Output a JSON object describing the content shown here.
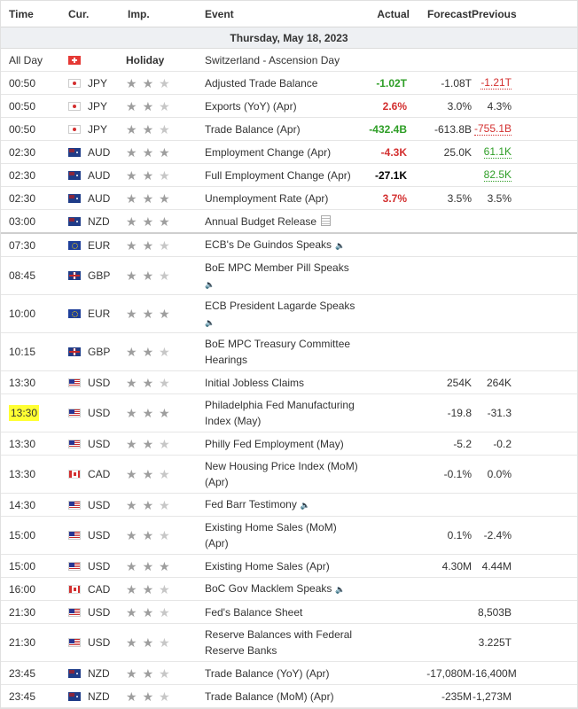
{
  "header": {
    "time": "Time",
    "currency": "Cur.",
    "importance": "Imp.",
    "event": "Event",
    "actual": "Actual",
    "forecast": "Forecast",
    "previous": "Previous"
  },
  "date_label": "Thursday, May 18, 2023",
  "rows": [
    {
      "time": "All Day",
      "flag": "CH",
      "currency": "",
      "holiday": "Holiday",
      "stars": 0,
      "event": "Switzerland - Ascension Day",
      "actual": "",
      "actual_style": "",
      "forecast": "",
      "previous": "",
      "previous_style": "",
      "h": 26
    },
    {
      "time": "00:50",
      "flag": "JP",
      "currency": "JPY",
      "stars": 2,
      "event": "Adjusted Trade Balance",
      "actual": "-1.02T",
      "actual_style": "pos",
      "forecast": "-1.08T",
      "previous": "-1.21T",
      "previous_style": "rev-neg",
      "h": 26
    },
    {
      "time": "00:50",
      "flag": "JP",
      "currency": "JPY",
      "stars": 2,
      "event": "Exports (YoY) (Apr)",
      "actual": "2.6%",
      "actual_style": "neg",
      "forecast": "3.0%",
      "previous": "4.3%",
      "previous_style": "",
      "h": 26
    },
    {
      "time": "00:50",
      "flag": "JP",
      "currency": "JPY",
      "stars": 2,
      "event": "Trade Balance (Apr)",
      "actual": "-432.4B",
      "actual_style": "pos",
      "forecast": "-613.8B",
      "previous": "-755.1B",
      "previous_style": "rev-neg",
      "h": 26
    },
    {
      "time": "02:30",
      "flag": "AU",
      "currency": "AUD",
      "stars": 3,
      "event": "Employment Change (Apr)",
      "actual": "-4.3K",
      "actual_style": "neg",
      "forecast": "25.0K",
      "previous": "61.1K",
      "previous_style": "rev-pos",
      "h": 26
    },
    {
      "time": "02:30",
      "flag": "AU",
      "currency": "AUD",
      "stars": 2,
      "event": "Full Employment Change (Apr)",
      "actual": "-27.1K",
      "actual_style": "bold",
      "forecast": "",
      "previous": "82.5K",
      "previous_style": "rev-pos",
      "h": 26
    },
    {
      "time": "02:30",
      "flag": "AU",
      "currency": "AUD",
      "stars": 3,
      "event": "Unemployment Rate (Apr)",
      "actual": "3.7%",
      "actual_style": "neg",
      "forecast": "3.5%",
      "previous": "3.5%",
      "previous_style": "",
      "h": 26
    },
    {
      "time": "03:00",
      "flag": "NZ",
      "currency": "NZD",
      "stars": 3,
      "event": "Annual Budget Release",
      "doc": true,
      "actual": "",
      "actual_style": "",
      "forecast": "",
      "previous": "",
      "previous_style": "",
      "h": 26,
      "divider": true
    },
    {
      "time": "07:30",
      "flag": "EU",
      "currency": "EUR",
      "stars": 2,
      "event": "ECB's De Guindos Speaks",
      "speaker": true,
      "actual": "",
      "actual_style": "",
      "forecast": "",
      "previous": "",
      "previous_style": "",
      "h": 26
    },
    {
      "time": "08:45",
      "flag": "GB",
      "currency": "GBP",
      "stars": 2,
      "event": "BoE MPC Member Pill Speaks",
      "speaker_below": true,
      "actual": "",
      "actual_style": "",
      "forecast": "",
      "previous": "",
      "previous_style": "",
      "h": 43
    },
    {
      "time": "10:00",
      "flag": "EU",
      "currency": "EUR",
      "stars": 3,
      "event": "ECB President Lagarde Speaks",
      "speaker_below": true,
      "actual": "",
      "actual_style": "",
      "forecast": "",
      "previous": "",
      "previous_style": "",
      "h": 43
    },
    {
      "time": "10:15",
      "flag": "GB",
      "currency": "GBP",
      "stars": 2,
      "event": "BoE MPC Treasury Committee Hearings",
      "actual": "",
      "actual_style": "",
      "forecast": "",
      "previous": "",
      "previous_style": "",
      "h": 43
    },
    {
      "time": "13:30",
      "flag": "US",
      "currency": "USD",
      "stars": 2,
      "event": "Initial Jobless Claims",
      "actual": "",
      "actual_style": "",
      "forecast": "254K",
      "previous": "264K",
      "previous_style": "",
      "h": 26
    },
    {
      "time": "13:30",
      "flag": "US",
      "currency": "USD",
      "stars": 3,
      "highlight": true,
      "event": "Philadelphia Fed Manufacturing Index (May)",
      "actual": "",
      "actual_style": "",
      "forecast": "-19.8",
      "previous": "-31.3",
      "previous_style": "",
      "h": 43
    },
    {
      "time": "13:30",
      "flag": "US",
      "currency": "USD",
      "stars": 2,
      "event": "Philly Fed Employment (May)",
      "actual": "",
      "actual_style": "",
      "forecast": "-5.2",
      "previous": "-0.2",
      "previous_style": "",
      "h": 26
    },
    {
      "time": "13:30",
      "flag": "CA",
      "currency": "CAD",
      "stars": 2,
      "event": "New Housing Price Index (MoM) (Apr)",
      "actual": "",
      "actual_style": "",
      "forecast": "-0.1%",
      "previous": "0.0%",
      "previous_style": "",
      "h": 43
    },
    {
      "time": "14:30",
      "flag": "US",
      "currency": "USD",
      "stars": 2,
      "event": "Fed Barr Testimony",
      "speaker": true,
      "actual": "",
      "actual_style": "",
      "forecast": "",
      "previous": "",
      "previous_style": "",
      "h": 26
    },
    {
      "time": "15:00",
      "flag": "US",
      "currency": "USD",
      "stars": 2,
      "event": "Existing Home Sales (MoM) (Apr)",
      "actual": "",
      "actual_style": "",
      "forecast": "0.1%",
      "previous": "-2.4%",
      "previous_style": "",
      "h": 43
    },
    {
      "time": "15:00",
      "flag": "US",
      "currency": "USD",
      "stars": 3,
      "event": "Existing Home Sales (Apr)",
      "actual": "",
      "actual_style": "",
      "forecast": "4.30M",
      "previous": "4.44M",
      "previous_style": "",
      "h": 26
    },
    {
      "time": "16:00",
      "flag": "CA",
      "currency": "CAD",
      "stars": 2,
      "event": "BoC Gov Macklem Speaks",
      "speaker": true,
      "actual": "",
      "actual_style": "",
      "forecast": "",
      "previous": "",
      "previous_style": "",
      "h": 26
    },
    {
      "time": "21:30",
      "flag": "US",
      "currency": "USD",
      "stars": 2,
      "event": "Fed's Balance Sheet",
      "actual": "",
      "actual_style": "",
      "forecast": "",
      "previous": "8,503B",
      "previous_style": "",
      "h": 26
    },
    {
      "time": "21:30",
      "flag": "US",
      "currency": "USD",
      "stars": 2,
      "event": "Reserve Balances with Federal Reserve Banks",
      "actual": "",
      "actual_style": "",
      "forecast": "",
      "previous": "3.225T",
      "previous_style": "",
      "h": 43
    },
    {
      "time": "23:45",
      "flag": "NZ",
      "currency": "NZD",
      "stars": 2,
      "event": "Trade Balance (YoY) (Apr)",
      "actual": "",
      "actual_style": "",
      "forecast": "-17,080M",
      "previous": "-16,400M",
      "previous_style": "",
      "h": 26
    },
    {
      "time": "23:45",
      "flag": "NZ",
      "currency": "NZD",
      "stars": 2,
      "event": "Trade Balance (MoM) (Apr)",
      "actual": "",
      "actual_style": "",
      "forecast": "-235M",
      "previous": "-1,273M",
      "previous_style": "",
      "h": 26
    }
  ]
}
